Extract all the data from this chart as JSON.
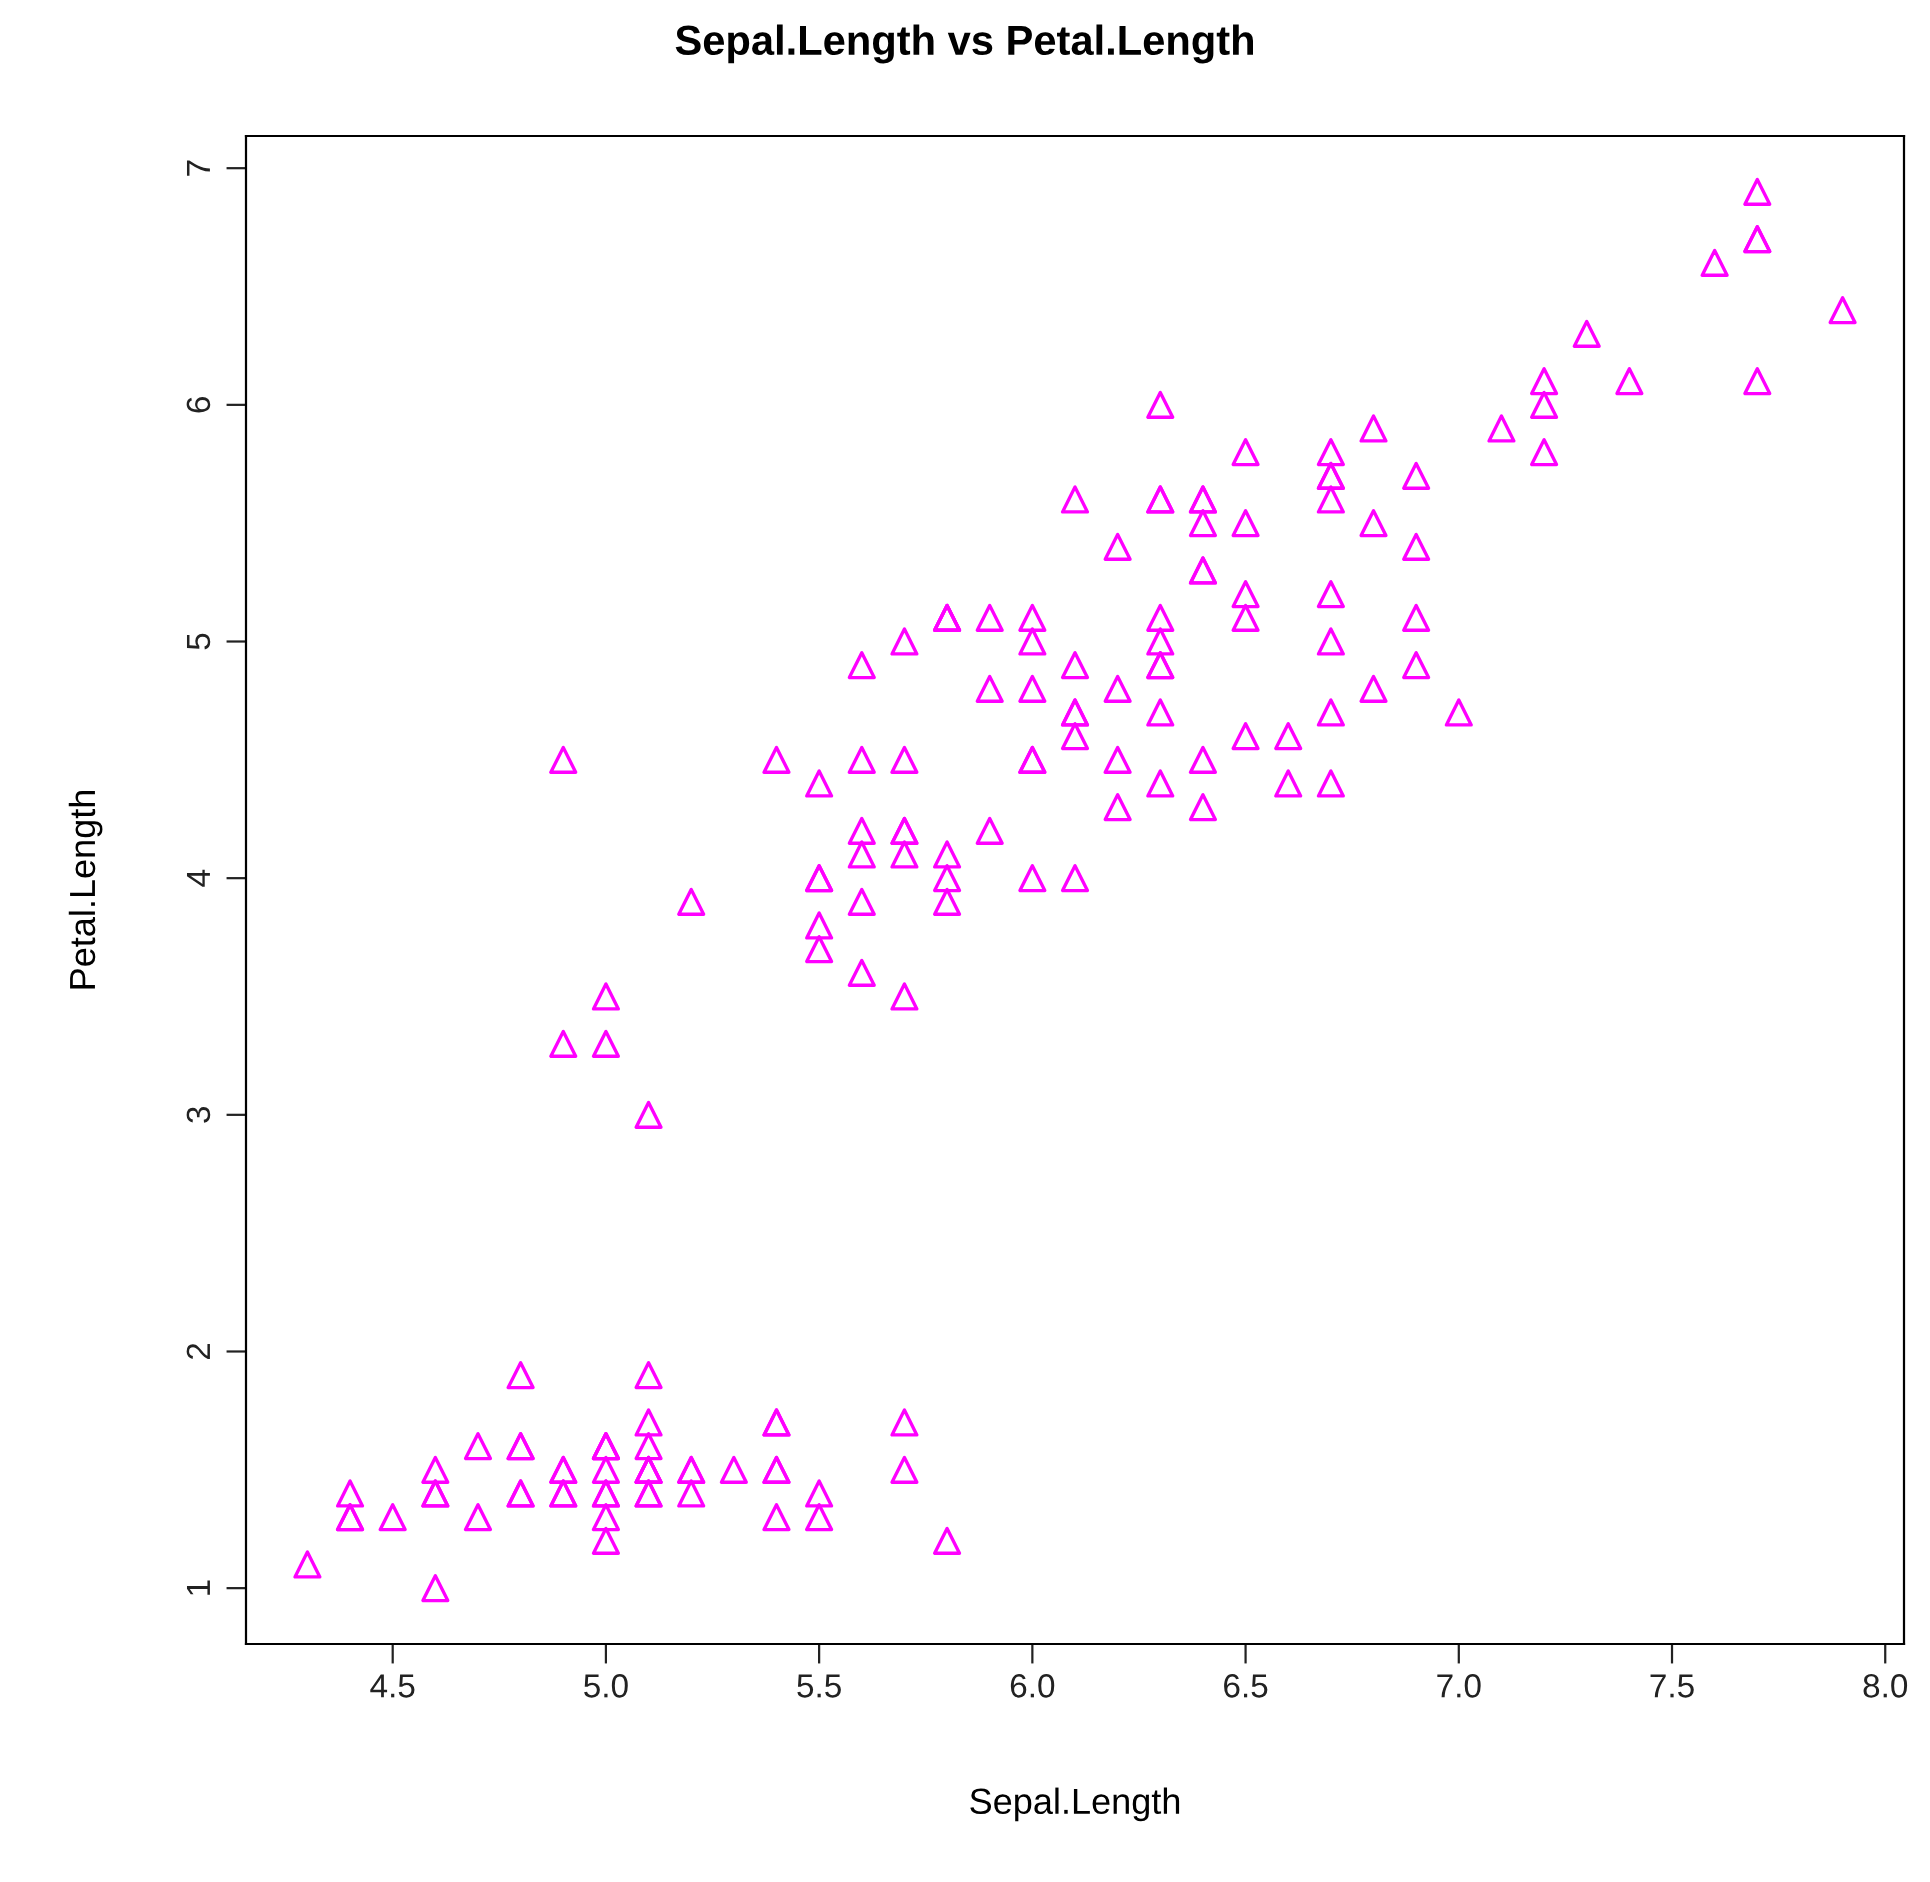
{
  "chart_data": {
    "type": "scatter",
    "title": "Sepal.Length vs Petal.Length",
    "xlabel": "Sepal.Length",
    "ylabel": "Petal.Length",
    "x": [
      5.1,
      4.9,
      4.7,
      4.6,
      5.0,
      5.4,
      4.6,
      5.0,
      4.4,
      4.9,
      5.4,
      4.8,
      4.8,
      4.3,
      5.8,
      5.7,
      5.4,
      5.1,
      5.7,
      5.1,
      5.4,
      5.1,
      4.6,
      5.1,
      4.8,
      5.0,
      5.0,
      5.2,
      5.2,
      4.7,
      4.8,
      5.4,
      5.2,
      5.5,
      4.9,
      5.0,
      5.5,
      4.9,
      4.4,
      5.1,
      5.0,
      4.5,
      4.4,
      5.0,
      5.1,
      4.8,
      5.1,
      4.6,
      5.3,
      5.0,
      7.0,
      6.4,
      6.9,
      5.5,
      6.5,
      5.7,
      6.3,
      4.9,
      6.6,
      5.2,
      5.0,
      5.9,
      6.0,
      6.1,
      5.6,
      6.7,
      5.6,
      5.8,
      6.2,
      5.6,
      5.9,
      6.1,
      6.3,
      6.1,
      6.4,
      6.6,
      6.8,
      6.7,
      6.0,
      5.7,
      5.5,
      5.5,
      5.8,
      6.0,
      5.4,
      6.0,
      6.7,
      6.3,
      5.6,
      5.5,
      5.5,
      6.1,
      5.8,
      5.0,
      5.6,
      5.7,
      5.7,
      6.2,
      5.1,
      5.7,
      6.3,
      5.8,
      7.1,
      6.3,
      6.5,
      7.6,
      4.9,
      7.3,
      6.7,
      7.2,
      6.5,
      6.4,
      6.8,
      5.7,
      5.8,
      6.4,
      6.5,
      7.7,
      7.7,
      6.0,
      6.9,
      5.6,
      7.7,
      6.3,
      6.7,
      7.2,
      6.2,
      6.1,
      6.4,
      7.2,
      7.4,
      7.9,
      6.4,
      6.3,
      6.1,
      7.7,
      6.3,
      6.4,
      6.0,
      6.9,
      6.7,
      6.9,
      5.8,
      6.8,
      6.7,
      6.7,
      6.3,
      6.5,
      6.2,
      5.9
    ],
    "series": [
      {
        "color": "#ff00ff",
        "values": [
          1.4,
          1.4,
          1.3,
          1.5,
          1.4,
          1.7,
          1.4,
          1.5,
          1.4,
          1.5,
          1.5,
          1.6,
          1.4,
          1.1,
          1.2,
          1.5,
          1.3,
          1.4,
          1.7,
          1.5,
          1.7,
          1.5,
          1.0,
          1.7,
          1.9,
          1.6,
          1.6,
          1.5,
          1.4,
          1.6,
          1.6,
          1.5,
          1.5,
          1.4,
          1.5,
          1.2,
          1.3,
          1.4,
          1.3,
          1.5,
          1.3,
          1.3,
          1.3,
          1.6,
          1.9,
          1.4,
          1.6,
          1.4,
          1.5,
          1.4,
          4.7,
          4.5,
          4.9,
          4.0,
          4.6,
          4.5,
          4.7,
          3.3,
          4.6,
          3.9,
          3.5,
          4.2,
          4.0,
          4.7,
          3.6,
          4.4,
          4.5,
          4.1,
          4.5,
          3.9,
          4.8,
          4.0,
          4.9,
          4.7,
          4.3,
          4.4,
          4.8,
          5.0,
          4.5,
          3.5,
          3.8,
          3.7,
          3.9,
          5.1,
          4.5,
          4.5,
          4.7,
          4.4,
          4.1,
          4.0,
          4.4,
          4.6,
          4.0,
          3.3,
          4.2,
          4.2,
          4.2,
          4.3,
          3.0,
          4.1,
          6.0,
          5.1,
          5.9,
          5.6,
          5.8,
          6.6,
          4.5,
          6.3,
          5.8,
          6.1,
          5.1,
          5.3,
          5.5,
          5.0,
          5.1,
          5.3,
          5.5,
          6.7,
          6.9,
          5.0,
          5.7,
          4.9,
          6.7,
          4.9,
          5.7,
          6.0,
          4.8,
          4.9,
          5.6,
          5.8,
          6.1,
          6.4,
          5.6,
          5.1,
          5.6,
          6.1,
          5.6,
          5.5,
          4.8,
          5.4,
          5.6,
          5.1,
          5.1,
          5.9,
          5.7,
          5.2,
          5.0,
          5.2,
          5.4,
          5.1
        ]
      }
    ],
    "marker": "triangle",
    "xlim": [
      4.156,
      8.044
    ],
    "ylim": [
      0.764,
      7.136
    ],
    "xticks": [
      {
        "value": 4.5,
        "label": "4.5"
      },
      {
        "value": 5,
        "label": "5.0"
      },
      {
        "value": 5.5,
        "label": "5.5"
      },
      {
        "value": 6,
        "label": "6.0"
      },
      {
        "value": 6.5,
        "label": "6.5"
      },
      {
        "value": 7,
        "label": "7.0"
      },
      {
        "value": 7.5,
        "label": "7.5"
      },
      {
        "value": 8,
        "label": "8.0"
      }
    ],
    "yticks": [
      1,
      2,
      3,
      4,
      5,
      6,
      7
    ],
    "grid": false
  }
}
